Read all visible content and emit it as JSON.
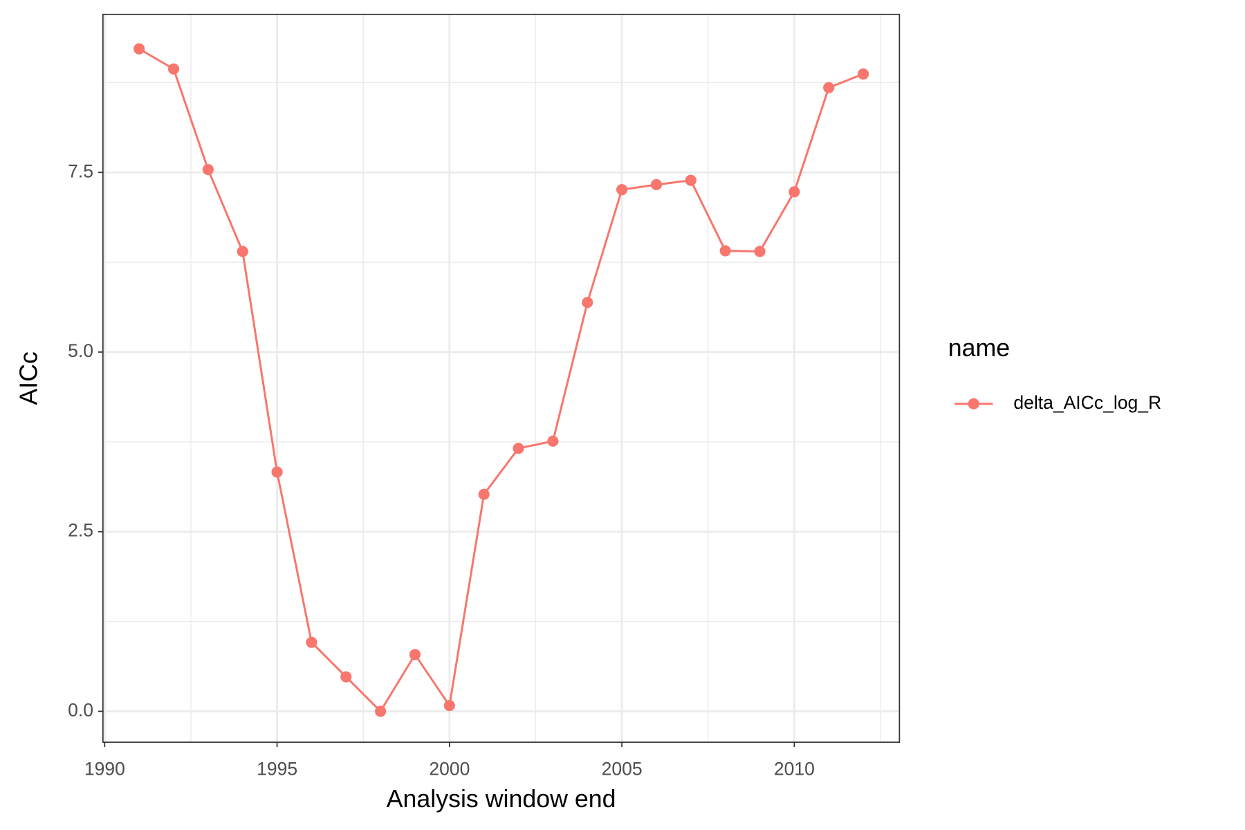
{
  "chart_data": {
    "type": "line",
    "x_label": "Analysis window end",
    "y_label": "AICc",
    "legend_title": "name",
    "legend_position": "right",
    "grid": true,
    "x": [
      1991,
      1992,
      1993,
      1994,
      1995,
      1996,
      1997,
      1998,
      1999,
      2000,
      2001,
      2002,
      2003,
      2004,
      2005,
      2006,
      2007,
      2008,
      2009,
      2010,
      2011,
      2012
    ],
    "series": [
      {
        "name": "delta_AICc_log_R",
        "color": "#F8766D",
        "values": [
          9.22,
          8.94,
          7.54,
          6.4,
          3.33,
          0.96,
          0.48,
          0.0,
          0.79,
          0.08,
          3.02,
          3.66,
          3.76,
          5.69,
          7.26,
          7.33,
          7.39,
          6.41,
          6.4,
          7.23,
          8.68,
          8.87
        ]
      }
    ],
    "xlim": [
      1989.95,
      2013.05
    ],
    "ylim": [
      -0.43,
      9.7
    ],
    "xticks": [
      1990,
      1995,
      2000,
      2005,
      2010
    ],
    "yticks": [
      {
        "value": 0,
        "label": "0.0"
      },
      2.5,
      {
        "value": 5,
        "label": "5.0"
      },
      7.5
    ],
    "x_minor_ticks": [
      1992.5,
      1997.5,
      2002.5,
      2007.5,
      2012.5
    ],
    "y_minor_ticks": [
      1.25,
      3.75,
      6.25,
      8.75
    ]
  }
}
